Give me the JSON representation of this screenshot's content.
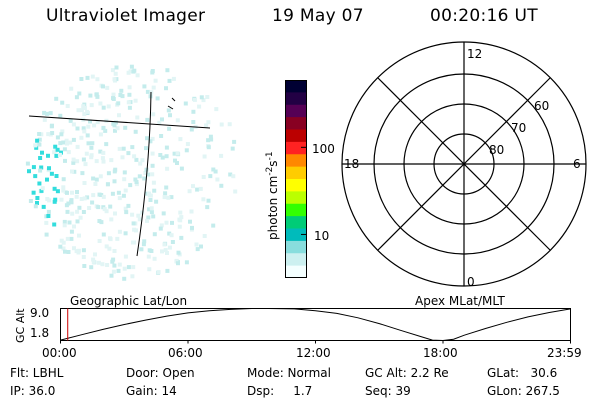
{
  "header": {
    "instrument": "Ultraviolet Imager",
    "date": "19 May 07",
    "time": "00:20:16 UT"
  },
  "colorbar": {
    "unit": "photon cm",
    "unit_sup1": "-2",
    "unit_mid": "s",
    "unit_sup2": "-1",
    "tick_labels": [
      "100",
      "10"
    ],
    "colors": [
      "#000033",
      "#220044",
      "#550055",
      "#880022",
      "#bb0000",
      "#ff2222",
      "#ff8800",
      "#ffcc00",
      "#ffff00",
      "#bbff00",
      "#33ff00",
      "#00cc77",
      "#00bbbb",
      "#88dddd",
      "#ccf0f0",
      "#f4ffff"
    ]
  },
  "polar_grid": {
    "mlt_labels": [
      "12",
      "18",
      "6",
      "0"
    ],
    "lat_labels": [
      "60",
      "70",
      "80"
    ]
  },
  "altitude_panel": {
    "left_caption": "Geographic Lat/Lon",
    "right_caption": "Apex MLat/MLT",
    "axis_label": "GC Alt",
    "y_ticks": [
      "9.0",
      "1.8"
    ],
    "x_ticks": [
      "00:00",
      "06:00",
      "12:00",
      "18:00",
      "23:59"
    ]
  },
  "chart_data": {
    "type": "line",
    "title": "",
    "xlabel": "",
    "ylabel": "GC Alt",
    "x_unit": "UT hours",
    "xlim": [
      0,
      24
    ],
    "ylim": [
      1.8,
      9.0
    ],
    "series": [
      {
        "x": [
          0,
          1,
          2,
          3,
          4,
          5,
          6,
          7,
          8,
          9,
          9.8,
          11,
          12,
          13,
          14,
          15,
          16,
          17,
          17.5,
          18,
          18.5,
          19,
          20,
          21,
          22,
          23,
          24
        ],
        "y": [
          1.9,
          3.1,
          4.3,
          5.4,
          6.4,
          7.3,
          8.0,
          8.5,
          8.8,
          9.0,
          9.0,
          8.9,
          8.5,
          7.9,
          6.9,
          5.6,
          4.1,
          2.6,
          1.9,
          1.8,
          2.1,
          3.0,
          4.5,
          5.9,
          7.1,
          8.1,
          8.9
        ]
      }
    ],
    "current_time_marker": 0.34
  },
  "status": {
    "flt": "Flt: LBHL",
    "ip": "IP: 36.0",
    "door": "Door: Open",
    "gain": "Gain: 14",
    "mode": "Mode: Normal",
    "dsp": "Dsp:     1.7",
    "gc_alt": "GC Alt: 2.2 Re",
    "seq": "Seq: 39",
    "glat": "GLat:   30.6",
    "glon": "GLon: 267.5"
  }
}
